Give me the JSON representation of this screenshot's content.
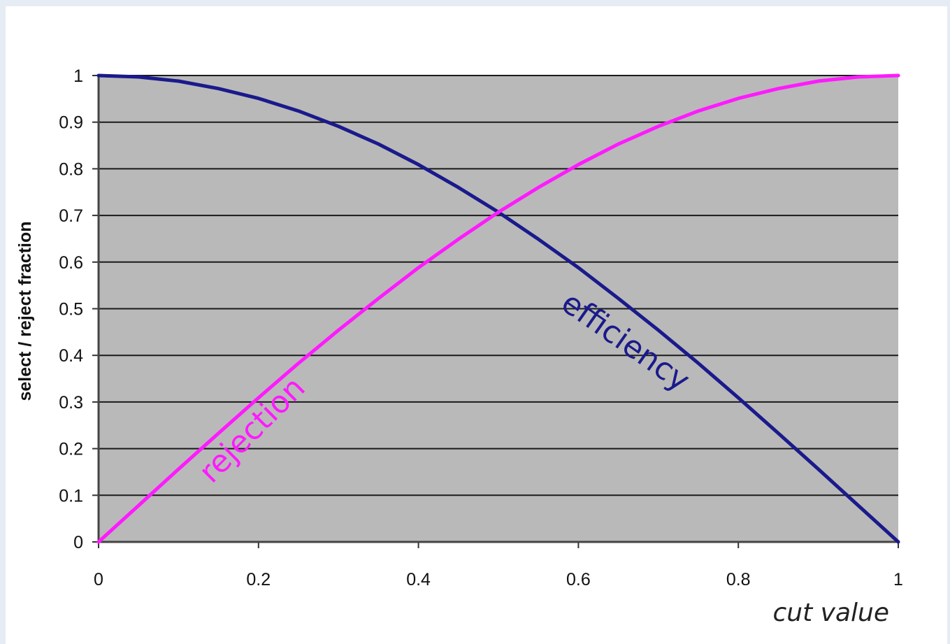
{
  "chart_data": {
    "type": "line",
    "title": "",
    "xlabel": "cut value",
    "ylabel": "select / reject fraction",
    "xlim": [
      0,
      1
    ],
    "ylim": [
      0,
      1
    ],
    "x_ticks": [
      "0",
      "0.2",
      "0.4",
      "0.6",
      "0.8",
      "1"
    ],
    "y_ticks": [
      "0",
      "0.1",
      "0.2",
      "0.3",
      "0.4",
      "0.5",
      "0.6",
      "0.7",
      "0.8",
      "0.9",
      "1"
    ],
    "grid": "horizontal",
    "plot_background": "#b9b9b9",
    "series": [
      {
        "name": "efficiency",
        "color": "#1a1a8c",
        "x": [
          0,
          0.05,
          0.1,
          0.15,
          0.2,
          0.25,
          0.3,
          0.35,
          0.4,
          0.45,
          0.5,
          0.55,
          0.6,
          0.65,
          0.7,
          0.75,
          0.8,
          0.85,
          0.9,
          0.95,
          1
        ],
        "y": [
          1.0,
          0.997,
          0.988,
          0.972,
          0.951,
          0.924,
          0.891,
          0.853,
          0.809,
          0.76,
          0.707,
          0.649,
          0.588,
          0.522,
          0.454,
          0.383,
          0.309,
          0.233,
          0.156,
          0.078,
          0.0
        ]
      },
      {
        "name": "rejection",
        "color": "#ff1aff",
        "x": [
          0,
          0.05,
          0.1,
          0.15,
          0.2,
          0.25,
          0.3,
          0.35,
          0.4,
          0.45,
          0.5,
          0.55,
          0.6,
          0.65,
          0.7,
          0.75,
          0.8,
          0.85,
          0.9,
          0.95,
          1
        ],
        "y": [
          0.0,
          0.078,
          0.156,
          0.233,
          0.309,
          0.383,
          0.454,
          0.522,
          0.588,
          0.649,
          0.707,
          0.76,
          0.809,
          0.853,
          0.891,
          0.924,
          0.951,
          0.972,
          0.988,
          0.997,
          1.0
        ]
      }
    ],
    "annotations": [
      {
        "text": "efficiency",
        "color": "#1a1a8c",
        "angle": 35
      },
      {
        "text": "rejection",
        "color": "#ff1aff",
        "angle": -45
      }
    ]
  }
}
